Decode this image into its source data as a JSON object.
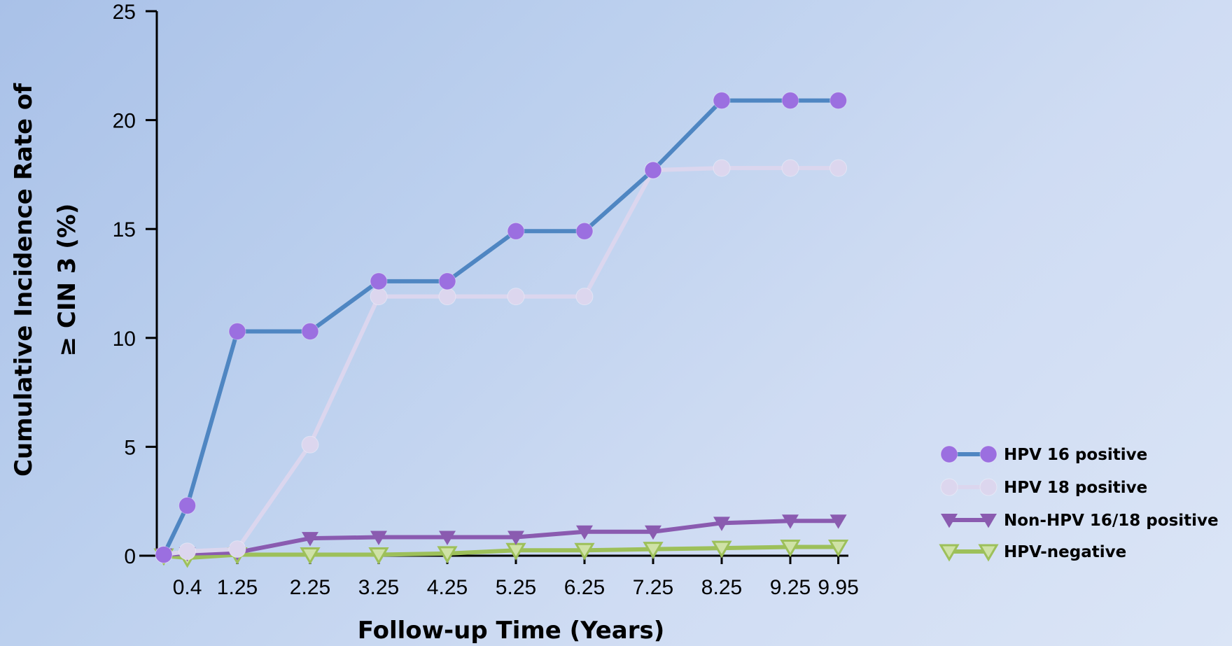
{
  "chart_data": {
    "type": "line",
    "xlabel": "Follow-up Time (Years)",
    "ylabel_line1": "Cumulative Incidence Rate of",
    "ylabel_line2": "≥ CIN 3 (%)",
    "x": [
      "0",
      "0.4",
      "1.25",
      "2.25",
      "3.25",
      "4.25",
      "5.25",
      "6.25",
      "7.25",
      "8.25",
      "9.25",
      "9.95"
    ],
    "x_tick_labels": [
      "0.4",
      "1.25",
      "2.25",
      "3.25",
      "4.25",
      "5.25",
      "6.25",
      "7.25",
      "8.25",
      "9.25",
      "9.95"
    ],
    "y_ticks": [
      "0",
      "5",
      "10",
      "15",
      "20",
      "25"
    ],
    "ylim": [
      0,
      25
    ],
    "grid": false,
    "legend_position": "bottom-right",
    "series": [
      {
        "name": "HPV 16 positive",
        "line_color": "#4f86c2",
        "marker": "circle",
        "marker_color": "#9b6fe0",
        "values": [
          0.05,
          2.3,
          10.3,
          10.3,
          12.6,
          12.6,
          14.9,
          14.9,
          17.7,
          20.9,
          20.9,
          20.9
        ]
      },
      {
        "name": "HPV 18 positive",
        "line_color": "#dbd6ee",
        "marker": "circle",
        "marker_color": "#dcd6ee",
        "values": [
          0.05,
          0.2,
          0.3,
          5.1,
          11.9,
          11.9,
          11.9,
          11.9,
          17.7,
          17.8,
          17.8,
          17.8
        ]
      },
      {
        "name": "Non-HPV 16/18 positive",
        "line_color": "#8a5bb0",
        "marker": "triangle-down",
        "marker_color": "#8a5bb0",
        "values": [
          0.05,
          0.1,
          0.15,
          0.8,
          0.85,
          0.85,
          0.85,
          1.1,
          1.1,
          1.5,
          1.6,
          1.6
        ]
      },
      {
        "name": "HPV-negative",
        "line_color": "#9dc05a",
        "marker": "triangle-down-open",
        "marker_color": "#9dc05a",
        "values": [
          0.0,
          -0.1,
          0.05,
          0.05,
          0.05,
          0.1,
          0.25,
          0.25,
          0.3,
          0.35,
          0.4,
          0.4
        ]
      }
    ]
  }
}
